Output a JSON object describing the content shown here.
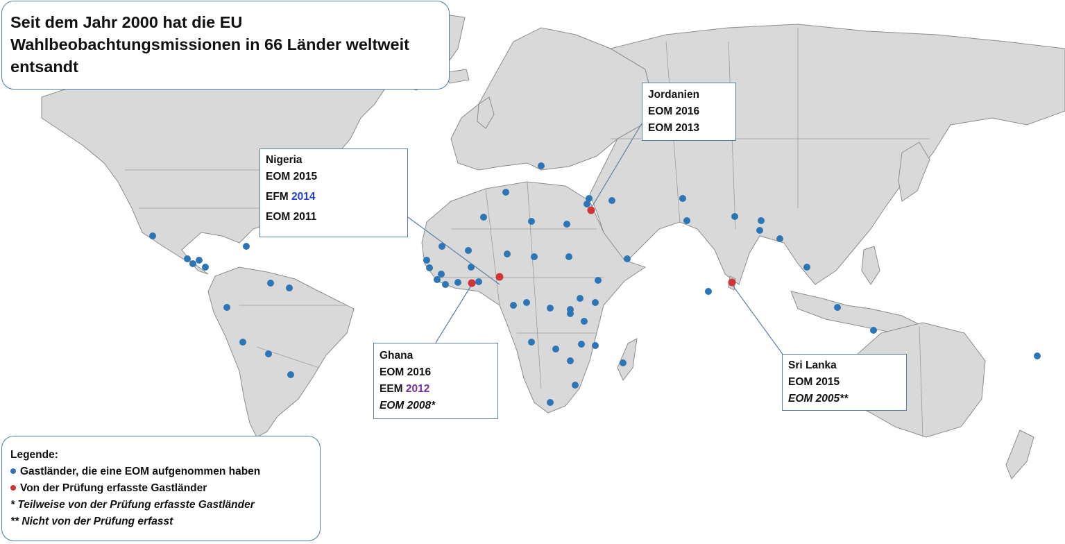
{
  "title": {
    "lines": [
      "Seit dem Jahr 2000 hat die EU",
      "Wahlbeobachtungsmissionen in 66 Länder weltweit",
      "entsandt"
    ]
  },
  "callouts": {
    "nigeria": {
      "name": "Nigeria",
      "entries": [
        {
          "prefix": "EOM",
          "year": "2015"
        },
        {
          "prefix": "EFM",
          "year": "2014",
          "year_color": "#1f3fd8"
        },
        {
          "prefix": "EOM",
          "year": "2011"
        }
      ]
    },
    "jordanien": {
      "name": "Jordanien",
      "entries": [
        {
          "prefix": "EOM",
          "year": "2016"
        },
        {
          "prefix": "EOM",
          "year": "2013"
        }
      ]
    },
    "ghana": {
      "name": "Ghana",
      "entries": [
        {
          "prefix": "EOM",
          "year": "2016"
        },
        {
          "prefix": "EEM",
          "year": "2012",
          "year_color": "#7030a0"
        },
        {
          "text": "EOM 2008*",
          "italic": true
        }
      ]
    },
    "srilanka": {
      "name": "Sri Lanka",
      "entries": [
        {
          "prefix": "EOM",
          "year": "2015"
        },
        {
          "text": "EOM 2005**",
          "italic": true
        }
      ]
    }
  },
  "legend": {
    "heading": "Legende:",
    "items": [
      {
        "marker": "blue",
        "text": "Gastländer, die eine EOM aufgenommen haben"
      },
      {
        "marker": "red",
        "text": "Von der Prüfung erfasste Gastländer"
      },
      {
        "text": "* Teilweise von der Prüfung erfasste Gastländer",
        "italic": true
      },
      {
        "text": "** Nicht von der Prüfung erfasst",
        "italic": true
      }
    ]
  },
  "colors": {
    "blue_marker": "#2e75b6",
    "red_marker": "#d13438",
    "land": "#d9d9d9",
    "box_border": "#4f7aa8"
  }
}
